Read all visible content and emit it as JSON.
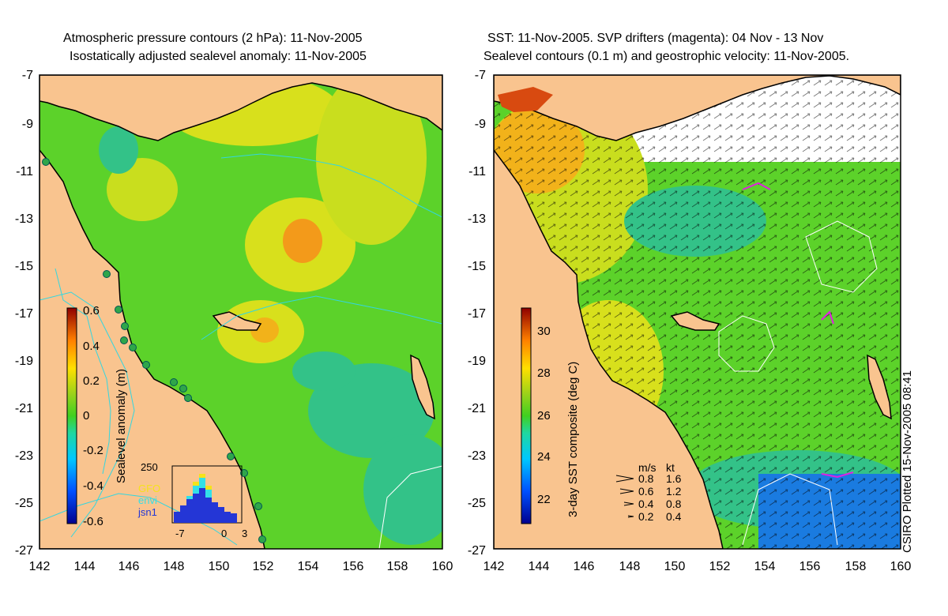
{
  "left_panel": {
    "title_line1": "Atmospheric pressure contours (2 hPa): 11-Nov-2005",
    "title_line2": "Isostatically adjusted sealevel anomaly: 11-Nov-2005",
    "colorbar_label": "Sealevel anomaly (m)",
    "colorbar_ticks": [
      "0.6",
      "0.4",
      "0.2",
      "0",
      "-0.2",
      "-0.4",
      "-0.6"
    ],
    "histogram": {
      "ymax_label": "250",
      "legend": [
        {
          "name": "GFO",
          "color": "#f5e21a"
        },
        {
          "name": "envi",
          "color": "#33e0e8"
        },
        {
          "name": "jsn1",
          "color": "#2436d6"
        }
      ],
      "xticks": [
        "-7",
        "0",
        "3"
      ]
    }
  },
  "right_panel": {
    "title_line1": "SST: 11-Nov-2005. SVP drifters (magenta): 04 Nov - 13 Nov",
    "title_line2": "Sealevel contours (0.1 m) and geostrophic velocity: 11-Nov-2005.",
    "colorbar_label": "3-day SST composite (deg C)",
    "colorbar_ticks": [
      "30",
      "28",
      "26",
      "24",
      "22"
    ],
    "velocity_legend": {
      "header_ms": "m/s",
      "header_kt": "kt",
      "rows": [
        {
          "ms": "0.8",
          "kt": "1.6"
        },
        {
          "ms": "0.6",
          "kt": "1.2"
        },
        {
          "ms": "0.4",
          "kt": "0.8"
        },
        {
          "ms": "0.2",
          "kt": "0.4"
        }
      ]
    }
  },
  "axes": {
    "y_ticks": [
      "-7",
      "-9",
      "-11",
      "-13",
      "-15",
      "-17",
      "-19",
      "-21",
      "-23",
      "-25",
      "-27"
    ],
    "x_ticks": [
      "142",
      "144",
      "146",
      "148",
      "150",
      "152",
      "154",
      "156",
      "158",
      "160"
    ]
  },
  "footer_note": "CSIRO Plotted 15-Nov-2005 08:41",
  "colors": {
    "land": "#f9c48f",
    "ocean_green": "#5cd22a",
    "ocean_yellow": "#d8e01c",
    "warm_orange": "#f39a1a",
    "cool_cyan": "#33cfcf",
    "sst_blue": "#1a7be0",
    "coast": "#000000",
    "contour_cyan": "#33d6e0"
  }
}
